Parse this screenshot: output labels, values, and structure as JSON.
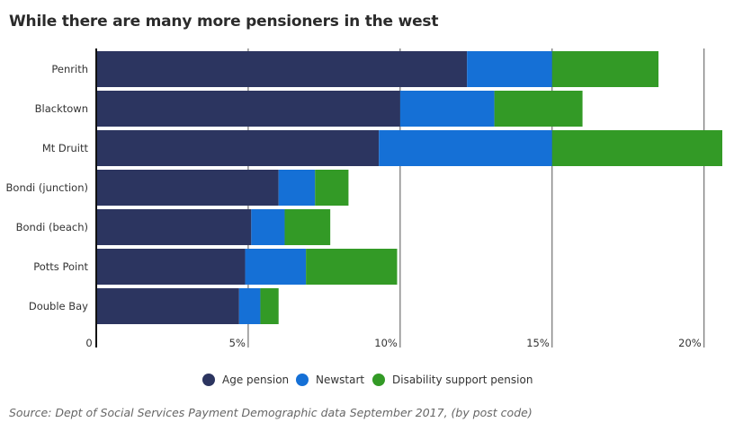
{
  "title": "While there are many more pensioners in the west",
  "source": "Source: Dept of Social Services Payment Demographic data September 2017, (by post code)",
  "colors": {
    "age_pension": "#2c3560",
    "newstart": "#1570d6",
    "disability": "#339a26",
    "gridline": "#555555",
    "axis": "#111111"
  },
  "chart_data": {
    "type": "bar",
    "orientation": "horizontal",
    "stacked": true,
    "categories": [
      "Penrith",
      "Blacktown",
      "Mt Druitt",
      "Bondi (junction)",
      "Bondi (beach)",
      "Potts Point",
      "Double Bay"
    ],
    "series": [
      {
        "name": "Age pension",
        "values": [
          12.2,
          10.0,
          9.3,
          6.0,
          5.1,
          4.9,
          4.7
        ]
      },
      {
        "name": "Newstart",
        "values": [
          2.8,
          3.1,
          5.7,
          1.2,
          1.1,
          2.0,
          0.7
        ]
      },
      {
        "name": "Disability support pension",
        "values": [
          3.5,
          2.9,
          5.6,
          1.1,
          1.5,
          3.0,
          0.6
        ]
      }
    ],
    "xlim": [
      0,
      20.6
    ],
    "xticks": [
      0,
      5,
      10,
      15,
      20
    ],
    "xtick_labels": [
      "0",
      "5%",
      "10%",
      "15%",
      "20%"
    ],
    "grid": "vertical",
    "legend_position": "bottom"
  }
}
